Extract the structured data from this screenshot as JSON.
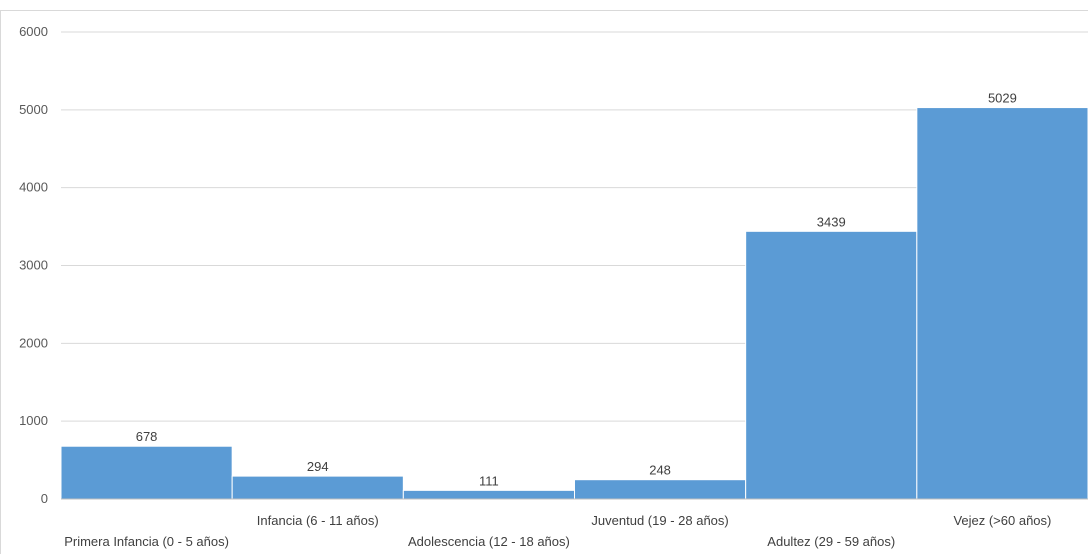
{
  "chart_data": {
    "type": "bar",
    "title": "",
    "xlabel": "",
    "ylabel": "",
    "ylim": [
      0,
      6000
    ],
    "yticks": [
      0,
      1000,
      2000,
      3000,
      4000,
      5000,
      6000
    ],
    "grid": true,
    "legend": "none",
    "bar_color": "#5b9bd5",
    "categories": [
      "Primera Infancia (0 - 5 años)",
      "Infancia (6 - 11 años)",
      "Adolescencia (12 - 18 años)",
      "Juventud (19 - 28 años)",
      "Adultez (29 - 59 años)",
      "Vejez (>60 años)"
    ],
    "values": [
      678,
      294,
      111,
      248,
      3439,
      5029
    ],
    "data_labels": [
      "678",
      "294",
      "111",
      "248",
      "3439",
      "5029"
    ]
  }
}
